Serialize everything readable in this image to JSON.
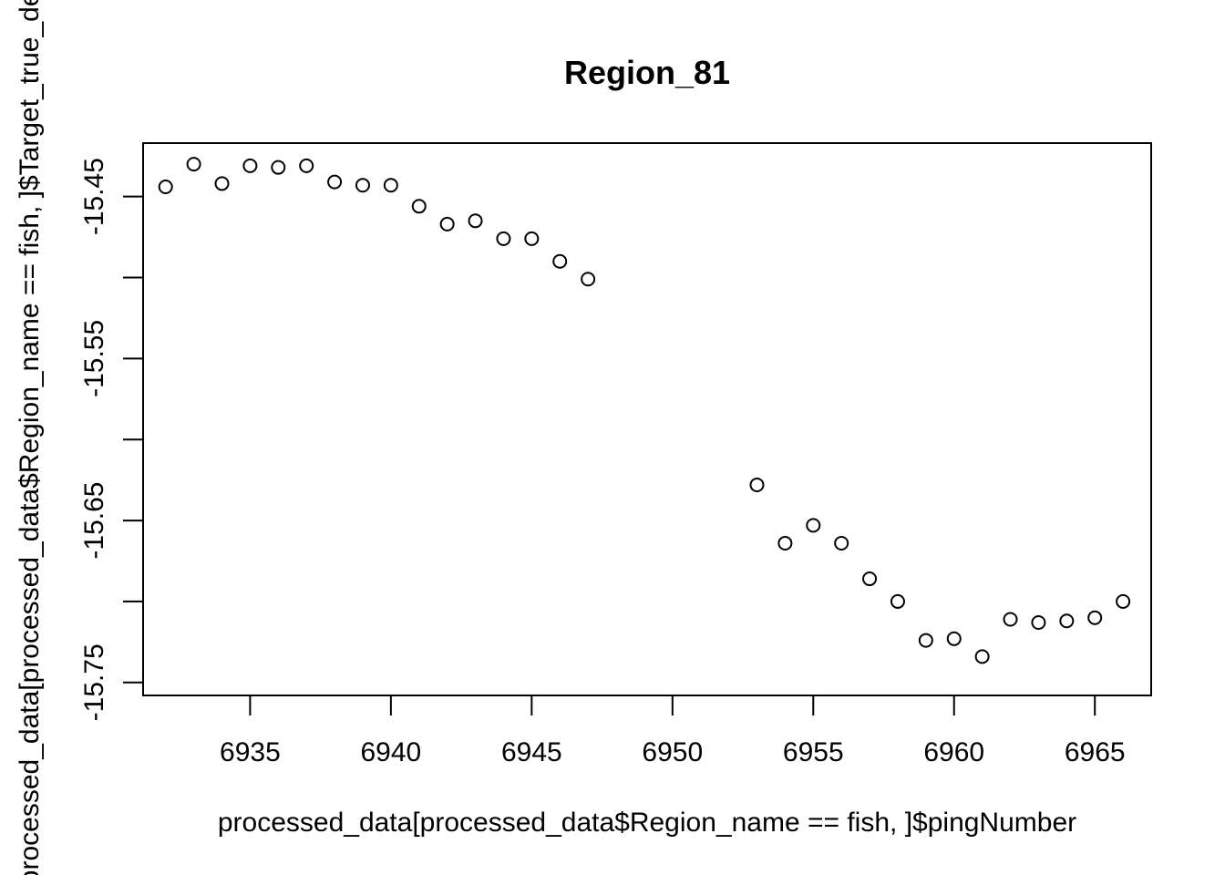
{
  "chart_data": {
    "type": "scatter",
    "title": "Region_81",
    "xlabel": "processed_data[processed_data$Region_name == fish, ]$pingNumber",
    "ylabel": "processed_data[processed_data$Region_name == fish, ]$Target_true_depth",
    "xlim": [
      6931.2,
      6967.0
    ],
    "ylim": [
      -15.758,
      -15.417
    ],
    "grid": false,
    "legend": "none",
    "x_ticks": [
      6935,
      6940,
      6945,
      6950,
      6955,
      6960,
      6965
    ],
    "x_tick_labels": [
      "6935",
      "6940",
      "6945",
      "6950",
      "6955",
      "6960",
      "6965"
    ],
    "y_ticks": [
      -15.45,
      -15.5,
      -15.55,
      -15.6,
      -15.65,
      -15.7,
      -15.75
    ],
    "y_tick_labels": [
      "-15.45",
      "",
      "-15.55",
      "",
      "-15.65",
      "",
      "-15.75"
    ],
    "x": [
      6932,
      6933,
      6934,
      6935,
      6936,
      6937,
      6938,
      6939,
      6940,
      6941,
      6942,
      6943,
      6944,
      6945,
      6946,
      6947,
      6953,
      6954,
      6955,
      6956,
      6957,
      6958,
      6959,
      6960,
      6961,
      6962,
      6963,
      6964,
      6965,
      6966
    ],
    "y": [
      -15.444,
      -15.43,
      -15.442,
      -15.431,
      -15.432,
      -15.431,
      -15.441,
      -15.443,
      -15.443,
      -15.456,
      -15.467,
      -15.465,
      -15.476,
      -15.476,
      -15.49,
      -15.501,
      -15.628,
      -15.664,
      -15.653,
      -15.664,
      -15.686,
      -15.7,
      -15.724,
      -15.723,
      -15.734,
      -15.711,
      -15.713,
      -15.712,
      -15.71,
      -15.7
    ]
  }
}
